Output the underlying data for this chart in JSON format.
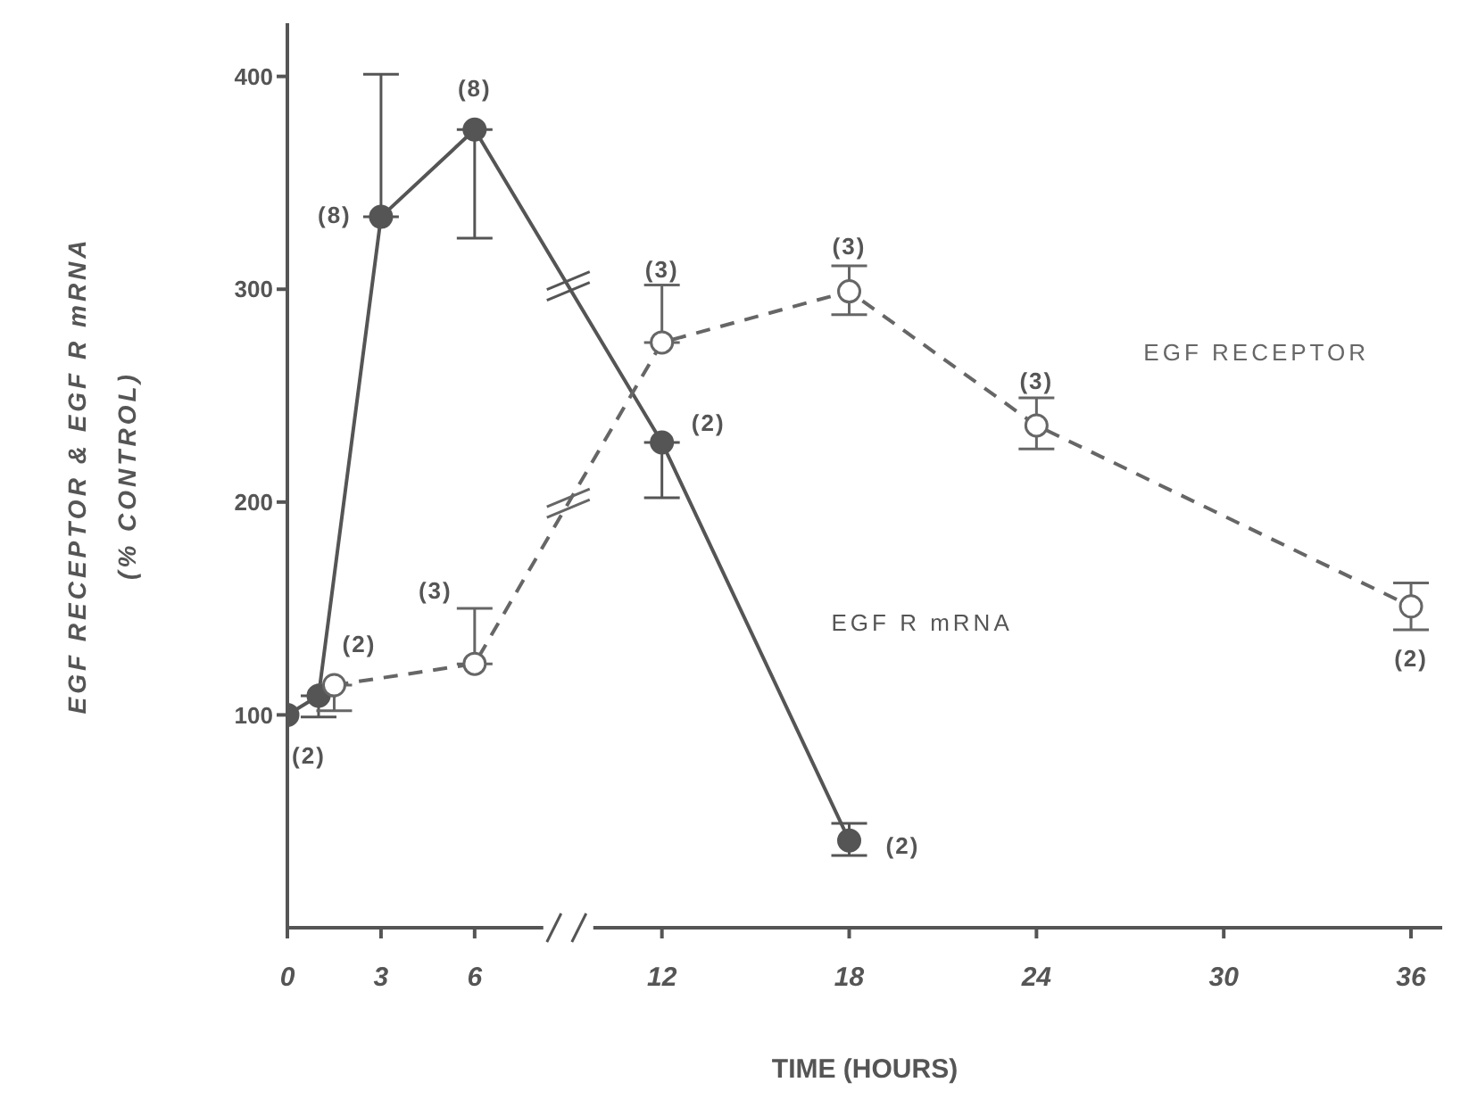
{
  "chart_data": {
    "type": "line",
    "xlabel": "TIME (HOURS)",
    "ylabel": "EGF RECEPTOR & EGF R mRNA\n(% CONTROL)",
    "xlim": [
      0,
      37
    ],
    "xticks": [
      0,
      3,
      6,
      12,
      18,
      24,
      30,
      36
    ],
    "ylim": [
      0,
      425
    ],
    "yticks": [
      100,
      200,
      300,
      400
    ],
    "grid": false,
    "legend": false,
    "marker": "circle",
    "series": [
      {
        "name": "EGF R mRNA",
        "color": "#555555",
        "line_style": "solid",
        "x": [
          0,
          1,
          3,
          6,
          12,
          18
        ],
        "values": [
          100,
          109,
          334,
          375,
          228,
          41
        ],
        "errors": [
          null,
          [
            99,
            109
          ],
          [
            334,
            401
          ],
          [
            324,
            375
          ],
          [
            202,
            228
          ],
          [
            34,
            49
          ]
        ]
      },
      {
        "name": "EGF RECEPTOR",
        "color": "#666666",
        "line_style": "dashed",
        "x": [
          1.5,
          6,
          12,
          18,
          24,
          36
        ],
        "values": [
          114,
          124,
          275,
          299,
          236,
          151
        ],
        "errors": [
          [
            102,
            114
          ],
          [
            124,
            150
          ],
          [
            275,
            302
          ],
          [
            288,
            311
          ],
          [
            225,
            249
          ],
          [
            140,
            162
          ]
        ]
      }
    ],
    "annotations": [
      {
        "text": "(2)",
        "x": 0,
        "y": 100
      },
      {
        "text": "(2)",
        "x": 1.5,
        "y": 114
      },
      {
        "text": "(8)",
        "x": 3,
        "y": 334
      },
      {
        "text": "(8)",
        "x": 6,
        "y": 375
      },
      {
        "text": "(3)",
        "x": 6,
        "y": 124
      },
      {
        "text": "(3)",
        "x": 12,
        "y": 275
      },
      {
        "text": "(2)",
        "x": 12,
        "y": 228
      },
      {
        "text": "(3)",
        "x": 18,
        "y": 299
      },
      {
        "text": "(2)",
        "x": 18,
        "y": 41
      },
      {
        "text": "(3)",
        "x": 24,
        "y": 236
      },
      {
        "text": "(2)",
        "x": 36,
        "y": 151
      }
    ]
  }
}
